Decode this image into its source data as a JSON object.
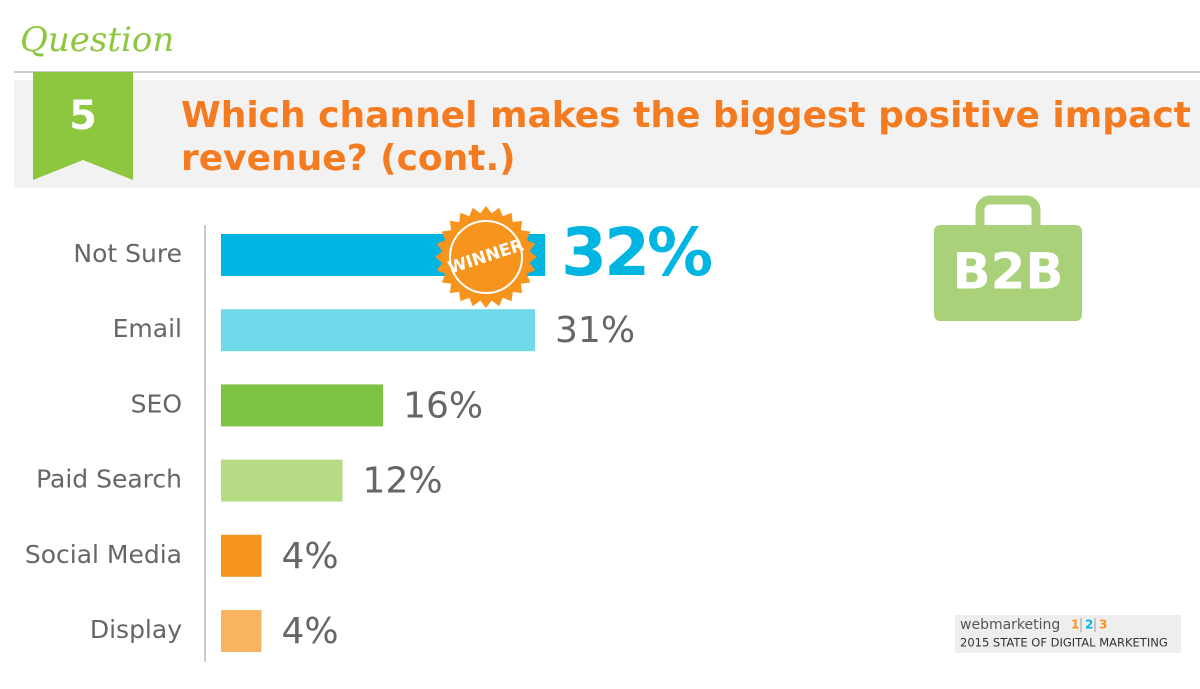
{
  "header": {
    "kicker": "Question",
    "number": "5",
    "title_lines": [
      "Which channel makes the biggest positive impact on",
      "revenue? (cont.)"
    ]
  },
  "chart_data": {
    "type": "bar",
    "orientation": "horizontal",
    "categories": [
      "Not Sure",
      "Email",
      "SEO",
      "Paid Search",
      "Social Media",
      "Display"
    ],
    "values": [
      32,
      31,
      16,
      12,
      4,
      4
    ],
    "value_labels": [
      "32%",
      "31%",
      "16%",
      "12%",
      "4%",
      "4%"
    ],
    "colors": [
      "#00b5e2",
      "#6fd9ea",
      "#7dc242",
      "#b5dc85",
      "#f7941d",
      "#f9b462"
    ],
    "annotation": "WINNER"
  },
  "badge": "B2B",
  "footer": {
    "brand": "webmarketing",
    "numbers": [
      "1",
      "2",
      "3"
    ],
    "subtitle": "2015 STATE OF DIGITAL MARKETING"
  }
}
